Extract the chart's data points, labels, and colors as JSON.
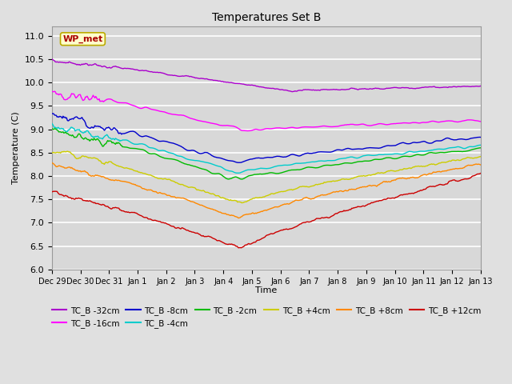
{
  "title": "Temperatures Set B",
  "xlabel": "Time",
  "ylabel": "Temperature (C)",
  "ylim": [
    6.0,
    11.2
  ],
  "background_color": "#e0e0e0",
  "plot_bg_color": "#d8d8d8",
  "grid_color": "white",
  "series_order": [
    "TC_B -32cm",
    "TC_B -16cm",
    "TC_B -8cm",
    "TC_B -4cm",
    "TC_B -2cm",
    "TC_B +4cm",
    "TC_B +8cm",
    "TC_B +12cm"
  ],
  "series": {
    "TC_B -32cm": {
      "color": "#aa00cc",
      "lw": 1.0
    },
    "TC_B -16cm": {
      "color": "#ff00ff",
      "lw": 1.0
    },
    "TC_B -8cm": {
      "color": "#0000cc",
      "lw": 1.0
    },
    "TC_B -4cm": {
      "color": "#00cccc",
      "lw": 1.0
    },
    "TC_B -2cm": {
      "color": "#00bb00",
      "lw": 1.0
    },
    "TC_B +4cm": {
      "color": "#cccc00",
      "lw": 1.0
    },
    "TC_B +8cm": {
      "color": "#ff8800",
      "lw": 1.0
    },
    "TC_B +12cm": {
      "color": "#cc0000",
      "lw": 1.0
    }
  },
  "xtick_labels": [
    "Dec 29",
    "Dec 30",
    "Dec 31",
    "Jan 1",
    "Jan 2",
    "Jan 3",
    "Jan 4",
    "Jan 5",
    "Jan 6",
    "Jan 7",
    "Jan 8",
    "Jan 9",
    "Jan 10",
    "Jan 11",
    "Jan 12",
    "Jan 13"
  ],
  "ytick_vals": [
    6.0,
    6.5,
    7.0,
    7.5,
    8.0,
    8.5,
    9.0,
    9.5,
    10.0,
    10.5,
    11.0
  ],
  "wp_met_label": "WP_met",
  "wp_met_color": "#aa0000",
  "wp_met_bg": "#ffffcc",
  "wp_met_border": "#bbaa00",
  "legend_ncol_row1": 6,
  "legend_ncol_row2": 2
}
